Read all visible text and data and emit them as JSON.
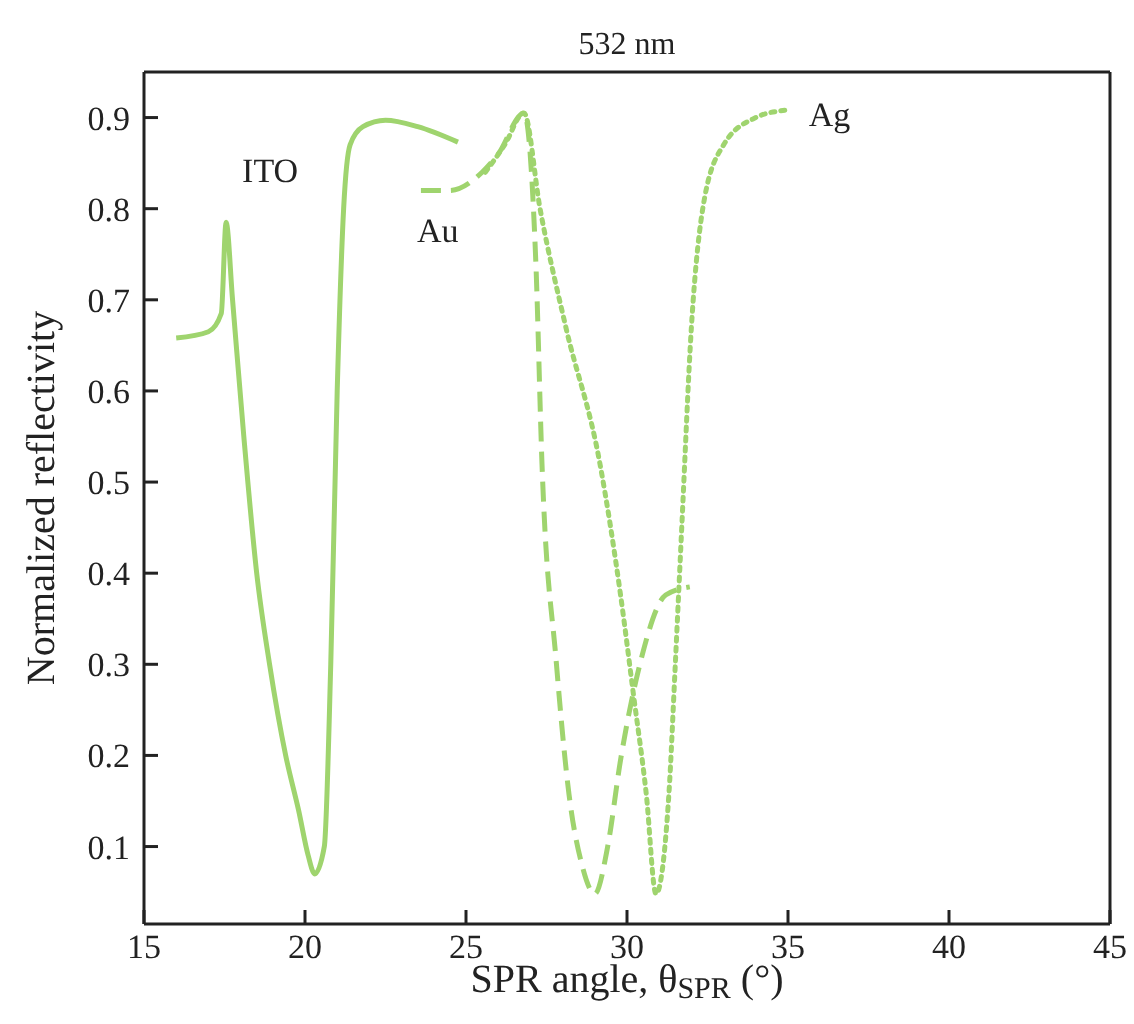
{
  "chart_data": {
    "type": "line",
    "title": "532 nm",
    "xlabel": "SPR angle, θ$_{SPR}$ (°)",
    "ylabel": "Normalized reflectivity",
    "xlim": [
      15,
      45
    ],
    "xticks": [
      15,
      20,
      25,
      30,
      35,
      40,
      45
    ],
    "ylim": [
      0.015,
      0.95
    ],
    "yticks": [
      0.1,
      0.2,
      0.3,
      0.4,
      0.5,
      0.6,
      0.7,
      0.8,
      0.9
    ],
    "marker": "none",
    "series": [
      {
        "color": "#9fd46e",
        "line_style": "solid",
        "x": [
          16,
          17,
          17.4,
          17.55,
          17.75,
          18.1,
          18.5,
          18.9,
          19.4,
          19.8,
          20.1,
          20.3,
          20.6,
          20.8,
          21.0,
          21.2,
          21.4,
          21.8,
          22.5,
          23.5,
          24.75
        ],
        "values": [
          0.658,
          0.665,
          0.685,
          0.785,
          0.7,
          0.55,
          0.4,
          0.3,
          0.2,
          0.14,
          0.09,
          0.07,
          0.1,
          0.3,
          0.6,
          0.8,
          0.87,
          0.89,
          0.897,
          0.89,
          0.873
        ]
      },
      {
        "color": "#9fd46e",
        "line_style": "dashed",
        "x": [
          23.6,
          24.5,
          25.5,
          26,
          26.8,
          27.17,
          27.36,
          27.8,
          28.2,
          28.6,
          29,
          29.4,
          29.8,
          30.4,
          31.2,
          31.95
        ],
        "values": [
          0.82,
          0.82,
          0.84,
          0.86,
          0.905,
          0.74,
          0.52,
          0.304,
          0.157,
          0.08,
          0.048,
          0.1,
          0.195,
          0.3,
          0.376,
          0.385
        ]
      },
      {
        "color": "#9fd46e",
        "line_style": "dotted",
        "x": [
          25.6,
          26.2,
          26.8,
          27.3,
          28.1,
          29.16,
          29.8,
          30.2,
          30.6,
          30.9,
          31.3,
          31.5,
          31.7,
          32,
          32.4,
          33,
          34,
          34.9
        ],
        "values": [
          0.84,
          0.87,
          0.905,
          0.8,
          0.67,
          0.52,
          0.376,
          0.267,
          0.157,
          0.048,
          0.157,
          0.3,
          0.45,
          0.67,
          0.81,
          0.87,
          0.9,
          0.908
        ]
      }
    ],
    "annotations": [
      {
        "text": "ITO",
        "x": 17.55,
        "y": 0.785
      },
      {
        "text": "Au",
        "x": 23.6,
        "y": 0.82
      },
      {
        "text": "Ag",
        "x": 34.9,
        "y": 0.908
      }
    ]
  }
}
